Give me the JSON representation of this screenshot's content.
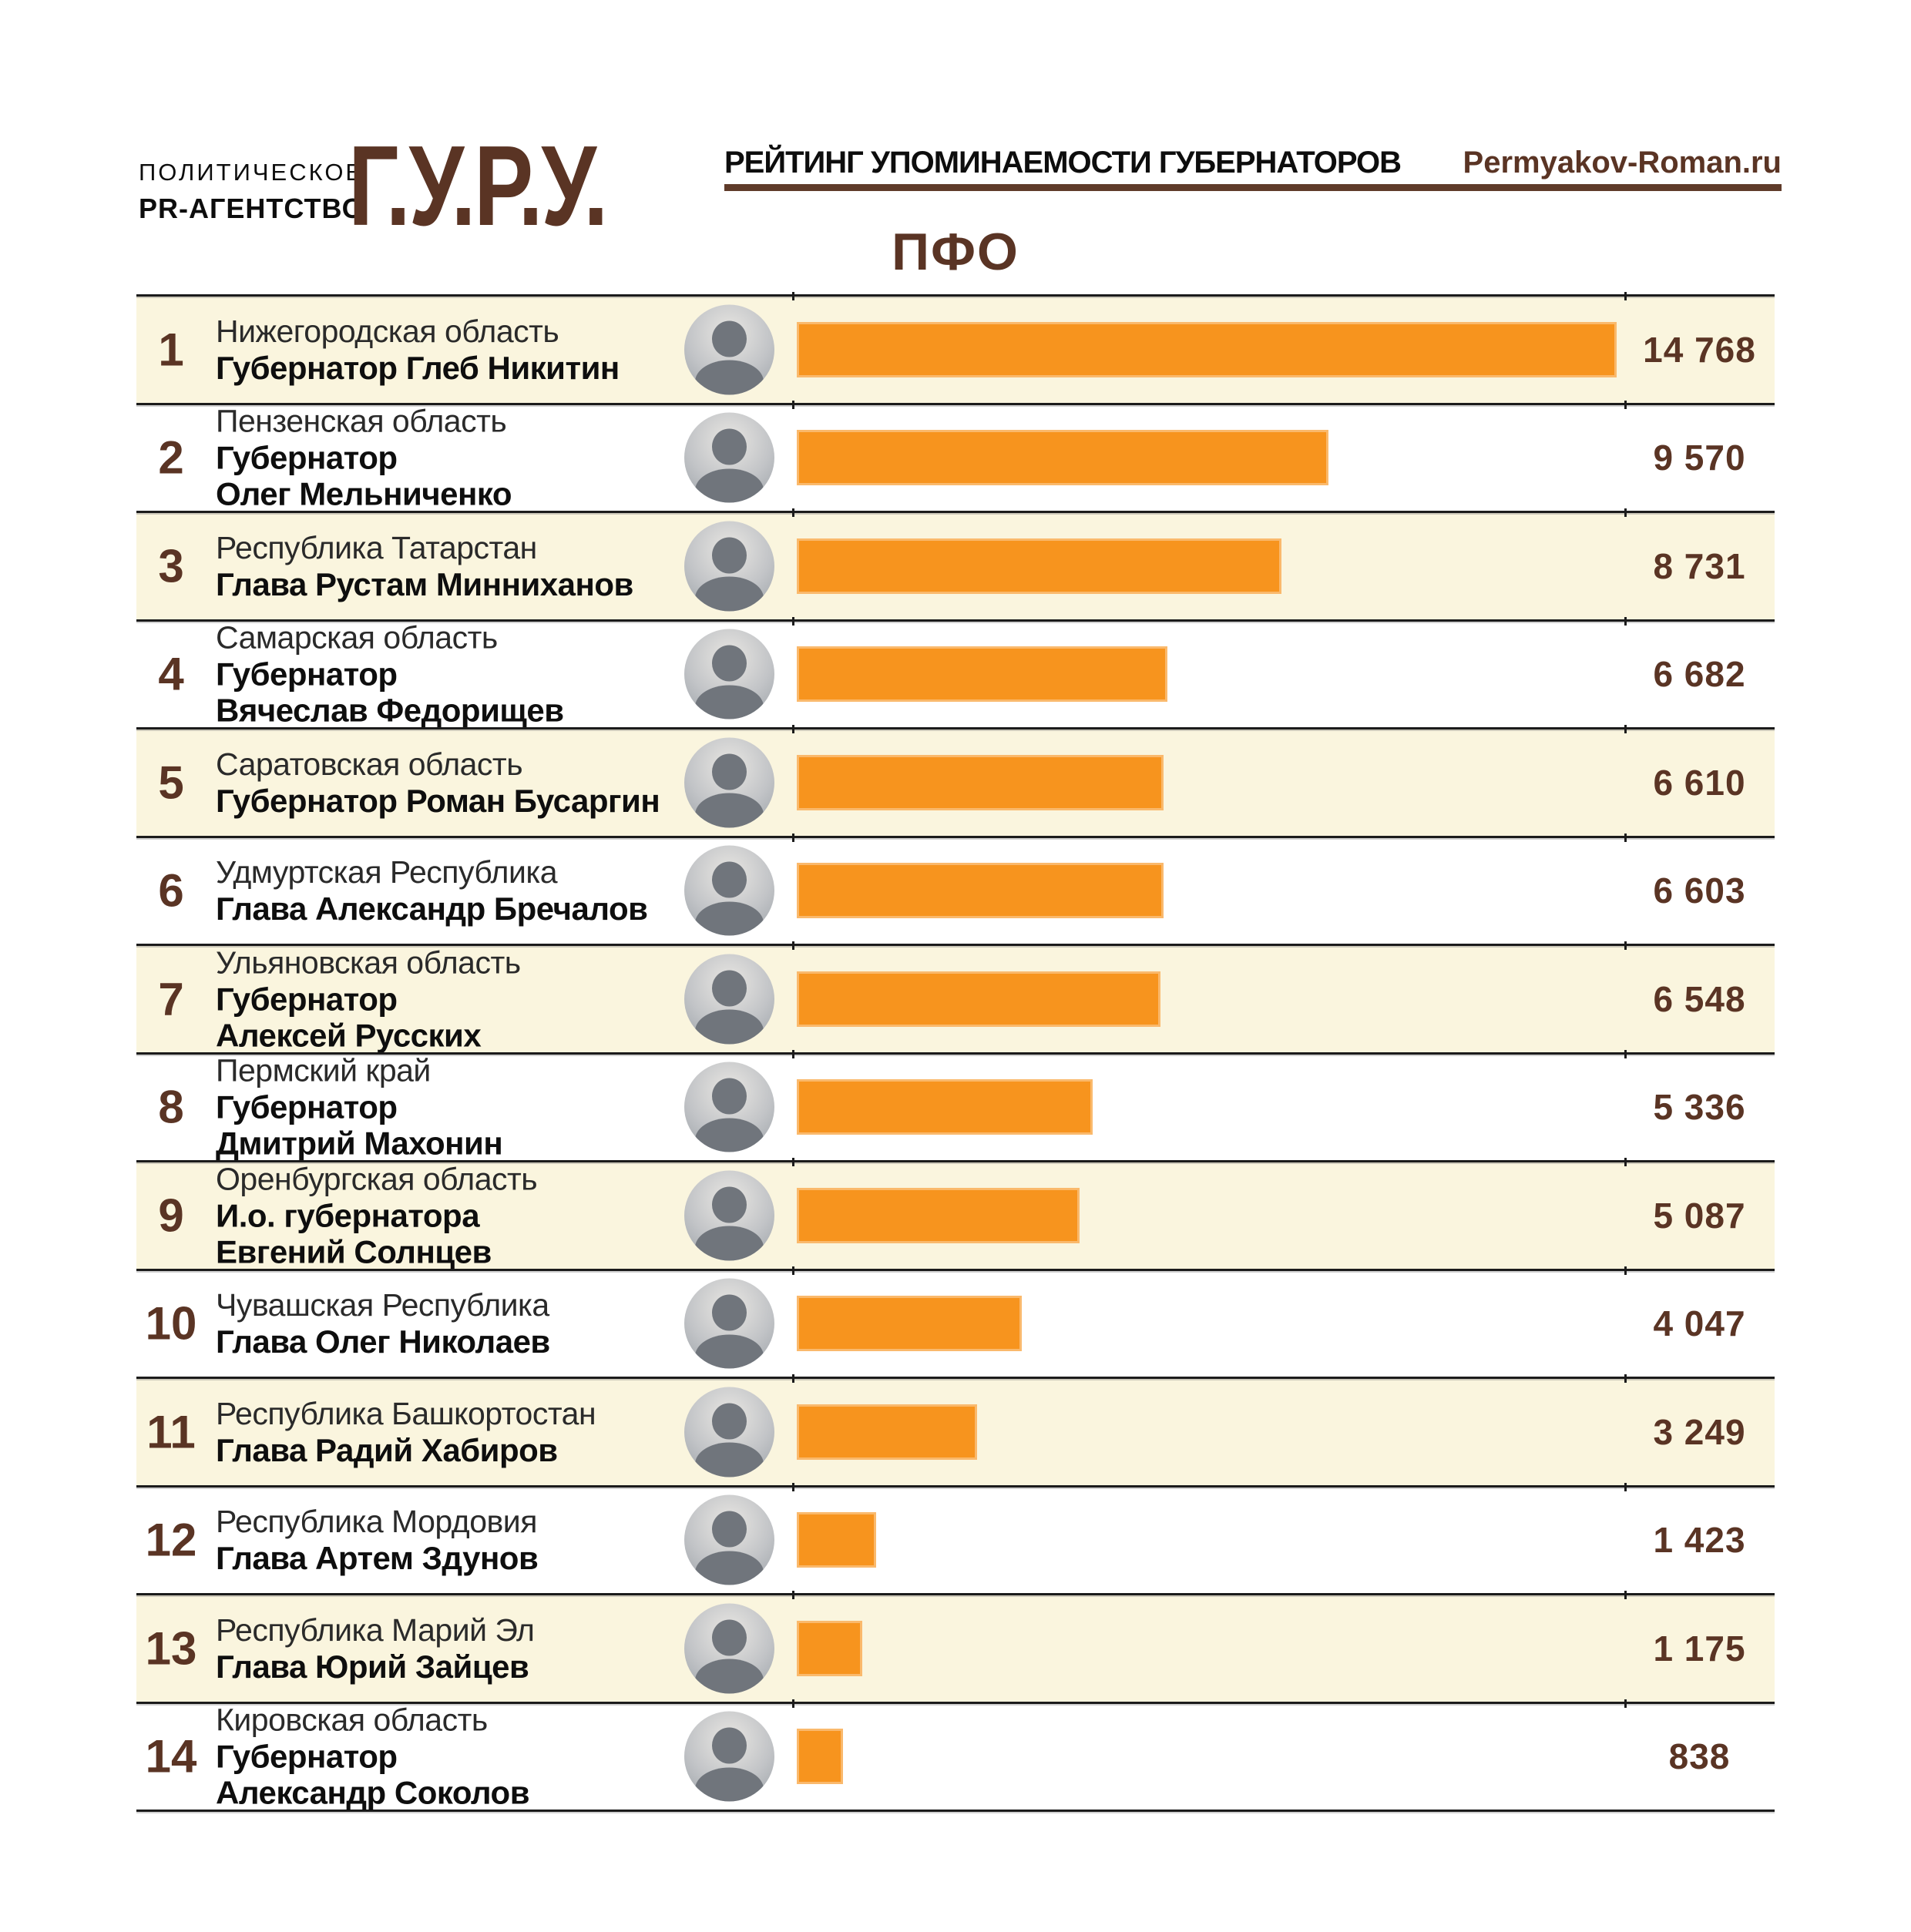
{
  "header": {
    "agency_line1": "ПОЛИТИЧЕСКОЕ",
    "agency_line2": "PR-АГЕНТСТВО",
    "logo": "Г.У.Р.У.",
    "subtitle": "РЕЙТИНГ УПОМИНАЕМОСТИ ГУБЕРНАТОРОВ",
    "site": "Permyakov-Roman.ru"
  },
  "title": "ПФО",
  "colors": {
    "accent_orange": "#F7941E",
    "brand_brown": "#5A3424",
    "rule_brown": "#5F3B2A",
    "row_alt_cream": "#FAF5DE",
    "divider": "#1B1B1B"
  },
  "chart_data": {
    "type": "bar",
    "orientation": "horizontal",
    "title": "ПФО",
    "subtitle": "РЕЙТИНГ УПОМИНАЕМОСТИ ГУБЕРНАТОРОВ",
    "legend": "none",
    "grid": false,
    "xlim": [
      0,
      14768
    ],
    "max_value": 14768,
    "bar_color": "#F7941E",
    "categories": [
      "Нижегородская область — Губернатор Глеб Никитин",
      "Пензенская область — Губернатор Олег Мельниченко",
      "Республика Татарстан — Глава Рустам Минниханов",
      "Самарская область — Губернатор Вячеслав Федорищев",
      "Саратовская область — Губернатор Роман Бусаргин",
      "Удмуртская Республика — Глава Александр Бречалов",
      "Ульяновская область — Губернатор Алексей Русских",
      "Пермский край — Губернатор Дмитрий Махонин",
      "Оренбургская область — И.о. губернатора Евгений Солнцев",
      "Чувашская Республика — Глава Олег Николаев",
      "Республика Башкортостан — Глава Радий Хабиров",
      "Республика Мордовия — Глава Артем Здунов",
      "Республика Марий Эл — Глава Юрий Зайцев",
      "Кировская область — Губернатор Александр Соколов"
    ],
    "values": [
      14768,
      9570,
      8731,
      6682,
      6610,
      6603,
      6548,
      5336,
      5087,
      4047,
      3249,
      1423,
      1175,
      838
    ],
    "value_labels": [
      "14 768",
      "9 570",
      "8 731",
      "6 682",
      "6 610",
      "6 603",
      "6 548",
      "5 336",
      "5 087",
      "4 047",
      "3 249",
      "1 423",
      "1 175",
      "838"
    ]
  },
  "rows": [
    {
      "rank": "1",
      "region": "Нижегородская область",
      "governor_lines": [
        "Губернатор Глеб Никитин"
      ],
      "value": 14768,
      "value_label": "14 768"
    },
    {
      "rank": "2",
      "region": "Пензенская область",
      "governor_lines": [
        "Губернатор",
        "Олег Мельниченко"
      ],
      "value": 9570,
      "value_label": "9 570"
    },
    {
      "rank": "3",
      "region": "Республика Татарстан",
      "governor_lines": [
        "Глава Рустам Минниханов"
      ],
      "value": 8731,
      "value_label": "8 731"
    },
    {
      "rank": "4",
      "region": "Самарская область",
      "governor_lines": [
        "Губернатор",
        "Вячеслав Федорищев"
      ],
      "value": 6682,
      "value_label": "6 682"
    },
    {
      "rank": "5",
      "region": "Саратовская область",
      "governor_lines": [
        "Губернатор Роман Бусаргин"
      ],
      "value": 6610,
      "value_label": "6 610"
    },
    {
      "rank": "6",
      "region": "Удмуртская Республика",
      "governor_lines": [
        "Глава Александр Бречалов"
      ],
      "value": 6603,
      "value_label": "6 603"
    },
    {
      "rank": "7",
      "region": "Ульяновская область",
      "governor_lines": [
        "Губернатор",
        "Алексей Русских"
      ],
      "value": 6548,
      "value_label": "6 548"
    },
    {
      "rank": "8",
      "region": "Пермский край",
      "governor_lines": [
        "Губернатор",
        "Дмитрий Махонин"
      ],
      "value": 5336,
      "value_label": "5 336"
    },
    {
      "rank": "9",
      "region": "Оренбургская область",
      "governor_lines": [
        "И.о. губернатора",
        "Евгений Солнцев"
      ],
      "value": 5087,
      "value_label": "5 087"
    },
    {
      "rank": "10",
      "region": "Чувашская Республика",
      "governor_lines": [
        "Глава Олег Николаев"
      ],
      "value": 4047,
      "value_label": "4 047"
    },
    {
      "rank": "11",
      "region": "Республика Башкортостан",
      "governor_lines": [
        "Глава Радий Хабиров"
      ],
      "value": 3249,
      "value_label": "3 249"
    },
    {
      "rank": "12",
      "region": "Республика Мордовия",
      "governor_lines": [
        "Глава Артем Здунов"
      ],
      "value": 1423,
      "value_label": "1 423"
    },
    {
      "rank": "13",
      "region": "Республика Марий Эл",
      "governor_lines": [
        "Глава Юрий Зайцев"
      ],
      "value": 1175,
      "value_label": "1 175"
    },
    {
      "rank": "14",
      "region": "Кировская область",
      "governor_lines": [
        "Губернатор",
        "Александр Соколов"
      ],
      "value": 838,
      "value_label": "838"
    }
  ]
}
